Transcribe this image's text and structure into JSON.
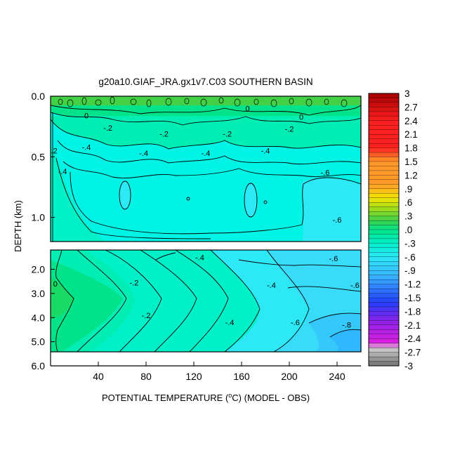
{
  "chart_data": {
    "type": "heatmap",
    "title": "g20a10.GIAF_JRA.gx1v7.C03 SOUTHERN BASIN",
    "xlabel": "POTENTIAL TEMPERATURE (",
    "xlabel_unit": "C) (MODEL - OBS)",
    "xlabel_degree": "o",
    "ylabel": "DEPTH (km)",
    "xlim": [
      0,
      260
    ],
    "x_ticks": [
      "40",
      "80",
      "120",
      "160",
      "200",
      "240"
    ],
    "x_tick_values": [
      40,
      80,
      120,
      160,
      200,
      240
    ],
    "upper_panel": {
      "ylim": [
        0.0,
        1.2
      ],
      "y_ticks": [
        "0.0",
        "0.5",
        "1.0"
      ],
      "y_tick_values": [
        0.0,
        0.5,
        1.0
      ]
    },
    "lower_panel": {
      "ylim": [
        1.2,
        6.0
      ],
      "y_ticks": [
        "2.0",
        "3.0",
        "4.0",
        "5.0",
        "6.0"
      ],
      "y_tick_values": [
        2.0,
        3.0,
        4.0,
        5.0,
        6.0
      ]
    },
    "colorbar": {
      "min": -3,
      "max": 3,
      "step": 0.1,
      "labels": [
        "3",
        "2.7",
        "2.4",
        "2.1",
        "1.8",
        "1.5",
        "1.2",
        ".9",
        ".6",
        ".3",
        ".0",
        "-.3",
        "-.6",
        "-.9",
        "-1.2",
        "-1.5",
        "-1.8",
        "-2.1",
        "-2.4",
        "-2.7",
        "-3"
      ],
      "label_values": [
        3,
        2.7,
        2.4,
        2.1,
        1.8,
        1.5,
        1.2,
        0.9,
        0.6,
        0.3,
        0.0,
        -0.3,
        -0.6,
        -0.9,
        -1.2,
        -1.5,
        -1.8,
        -2.1,
        -2.4,
        -2.7,
        -3
      ],
      "colors": {
        "pos_high": "#a50000",
        "pos_red": "#ff2020",
        "pos_orange": "#ff9a2a",
        "pos_yellow": "#f5e600",
        "pos_lime": "#9bdc1e",
        "green": "#3fd24a",
        "zero_green": "#00e38a",
        "teal": "#00f0c8",
        "cyan": "#2be8f5",
        "light_blue": "#3ab8ff",
        "blue": "#2240ff",
        "violet": "#8a22e8",
        "magenta": "#e020e0",
        "gray_light": "#d0d0d0",
        "gray_dark": "#707070"
      }
    },
    "contour_labels_upper": [
      {
        "x": 3,
        "y": 0.45,
        "text": ".2"
      },
      {
        "x": 10,
        "y": 0.62,
        "text": "-.4"
      },
      {
        "x": 30,
        "y": 0.16,
        "text": "0"
      },
      {
        "x": 48,
        "y": 0.26,
        "text": "-.2"
      },
      {
        "x": 30,
        "y": 0.42,
        "text": "-.4"
      },
      {
        "x": 78,
        "y": 0.47,
        "text": "-.4"
      },
      {
        "x": 95,
        "y": 0.31,
        "text": "-.2"
      },
      {
        "x": 130,
        "y": 0.47,
        "text": "-.4"
      },
      {
        "x": 148,
        "y": 0.31,
        "text": "-.2"
      },
      {
        "x": 165,
        "y": 0.1,
        "text": "0"
      },
      {
        "x": 180,
        "y": 0.45,
        "text": "-.4"
      },
      {
        "x": 200,
        "y": 0.27,
        "text": "-.2"
      },
      {
        "x": 210,
        "y": 0.17,
        "text": "0"
      },
      {
        "x": 230,
        "y": 0.63,
        "text": "-.6"
      },
      {
        "x": 240,
        "y": 1.02,
        "text": "-.6"
      }
    ],
    "contour_labels_lower": [
      {
        "x": 4,
        "y": 2.6,
        "text": "0"
      },
      {
        "x": 70,
        "y": 2.55,
        "text": "-.2"
      },
      {
        "x": 80,
        "y": 3.9,
        "text": "-.2"
      },
      {
        "x": 125,
        "y": 1.5,
        "text": "-.4"
      },
      {
        "x": 150,
        "y": 4.2,
        "text": "-.4"
      },
      {
        "x": 185,
        "y": 2.65,
        "text": "-.4"
      },
      {
        "x": 205,
        "y": 4.2,
        "text": "-.6"
      },
      {
        "x": 237,
        "y": 1.55,
        "text": "-.6"
      },
      {
        "x": 255,
        "y": 2.65,
        "text": "-.6"
      },
      {
        "x": 248,
        "y": 4.3,
        "text": "-.8"
      }
    ],
    "grid": false
  }
}
